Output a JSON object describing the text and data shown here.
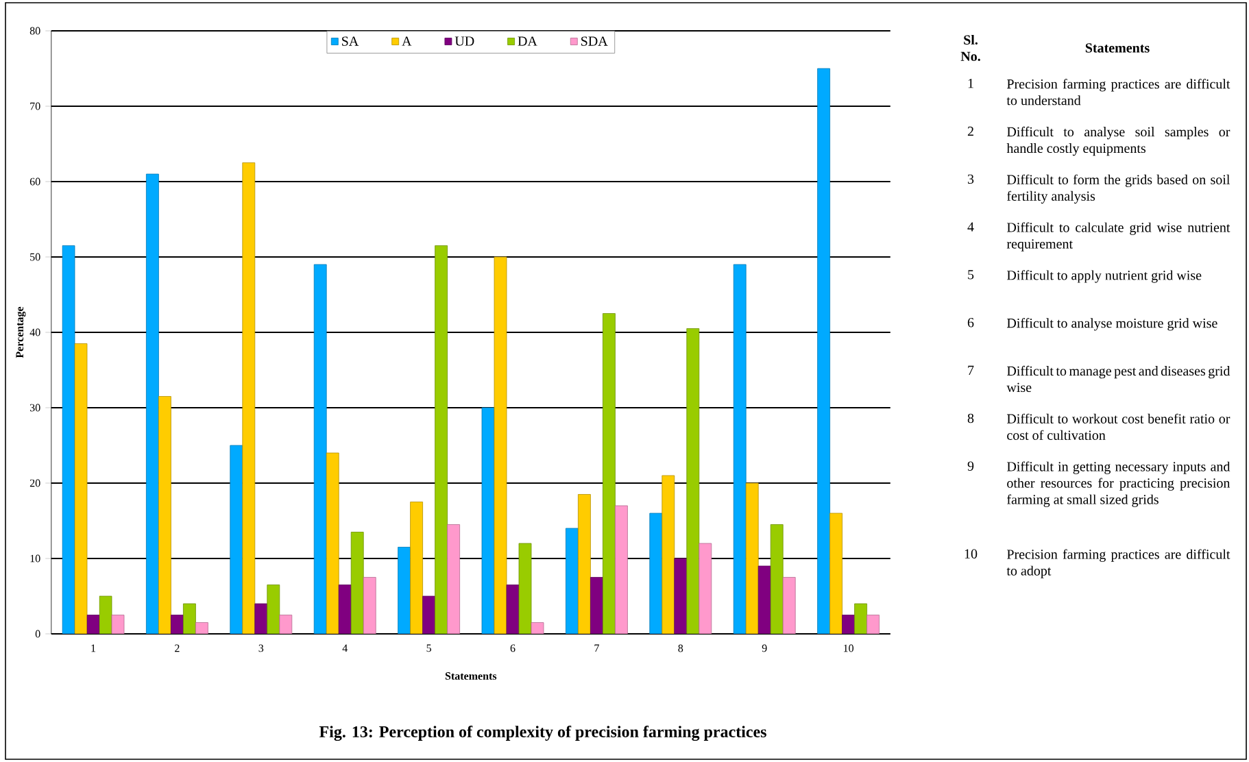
{
  "chart_data": {
    "type": "bar",
    "title": "Fig. 13: Perception of complexity of precision farming practices",
    "xlabel": "Statements",
    "ylabel": "Percentage",
    "categories": [
      "1",
      "2",
      "3",
      "4",
      "5",
      "6",
      "7",
      "8",
      "9",
      "10"
    ],
    "series": [
      {
        "name": "SA",
        "color": "#00aaff",
        "values": [
          51.5,
          61,
          25,
          49,
          11.5,
          30,
          14,
          16,
          49,
          75
        ]
      },
      {
        "name": "A",
        "color": "#ffcc00",
        "values": [
          38.5,
          31.5,
          62.5,
          24,
          17.5,
          50,
          18.5,
          21,
          20,
          16
        ]
      },
      {
        "name": "UD",
        "color": "#800080",
        "values": [
          2.5,
          2.5,
          4,
          6.5,
          5,
          6.5,
          7.5,
          10,
          9,
          2.5
        ]
      },
      {
        "name": "DA",
        "color": "#99cc00",
        "values": [
          5,
          4,
          6.5,
          13.5,
          51.5,
          12,
          42.5,
          40.5,
          14.5,
          4
        ]
      },
      {
        "name": "SDA",
        "color": "#ff99cc",
        "values": [
          2.5,
          1.5,
          2.5,
          7.5,
          14.5,
          1.5,
          17,
          12,
          7.5,
          2.5
        ]
      }
    ],
    "ylim": [
      0,
      80
    ],
    "yticks": [
      0,
      10,
      20,
      30,
      40,
      50,
      60,
      70,
      80
    ],
    "grid": "y",
    "legend": "top",
    "annotations": [
      "Sl. No.",
      "Statements",
      "1",
      "Precision farming practices are difficult to understand",
      "2",
      "Difficult to analyse soil samples or handle costly equipments",
      "3",
      "Difficult to form the grids based on soil fertility analysis",
      "4",
      "Difficult to calculate grid wise nutrient requirement",
      "5",
      "Difficult to apply nutrient grid wise",
      "6",
      "Difficult to analyse moisture grid wise",
      "7",
      "Difficult to manage pest and diseases grid wise",
      "8",
      "Difficult to workout cost benefit ratio or cost of cultivation",
      "9",
      "Difficult in getting necessary inputs and other resources for practicing precision farming at small sized grids",
      "10",
      "Precision farming practices are difficult to adopt"
    ]
  }
}
